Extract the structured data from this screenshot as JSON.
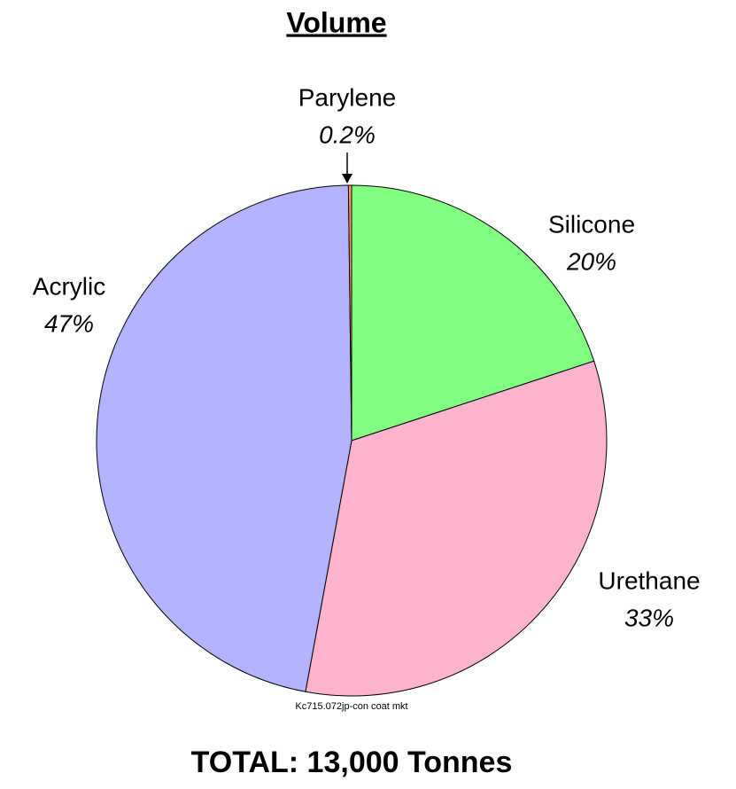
{
  "chart_data": {
    "type": "pie",
    "title": "Volume",
    "categories": [
      "Silicone",
      "Urethane",
      "Acrylic",
      "Parylene"
    ],
    "values": [
      20,
      33,
      47,
      0.2
    ],
    "value_labels": [
      "20%",
      "33%",
      "47%",
      "0.2%"
    ],
    "colors": [
      "#80ff80",
      "#ffb3cc",
      "#b3b3ff",
      "#ff9966"
    ],
    "note": "Kc715.072jp-con coat mkt",
    "total": "TOTAL: 13,000 Tonnes"
  }
}
